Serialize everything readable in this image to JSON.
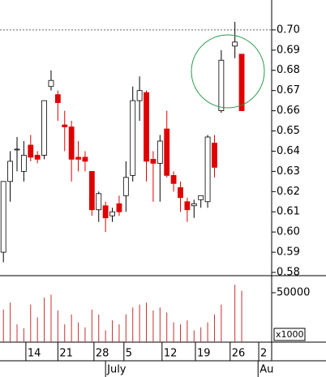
{
  "chart_data": {
    "type": "candlestick",
    "x": [
      0,
      1,
      2,
      3,
      4,
      5,
      6,
      7,
      8,
      9,
      10,
      11,
      12,
      13,
      14,
      15,
      16,
      17,
      18,
      19,
      20,
      21,
      22,
      23,
      24,
      25,
      26,
      27,
      28,
      29,
      30,
      31,
      32,
      34,
      35
    ],
    "open": [
      0.59,
      0.625,
      0.641,
      0.63,
      0.643,
      0.638,
      0.638,
      0.672,
      0.668,
      0.653,
      0.652,
      0.637,
      0.637,
      0.63,
      0.611,
      0.613,
      0.608,
      0.614,
      0.618,
      0.628,
      0.665,
      0.669,
      0.636,
      0.634,
      0.651,
      0.628,
      0.622,
      0.615,
      0.613,
      0.616,
      0.615,
      0.644,
      0.66,
      0.692,
      0.688
    ],
    "high": [
      0.625,
      0.64,
      0.647,
      0.645,
      0.648,
      0.64,
      0.665,
      0.68,
      0.67,
      0.66,
      0.655,
      0.645,
      0.64,
      0.63,
      0.62,
      0.615,
      0.612,
      0.618,
      0.635,
      0.672,
      0.677,
      0.67,
      0.64,
      0.648,
      0.66,
      0.63,
      0.625,
      0.617,
      0.616,
      0.618,
      0.648,
      0.648,
      0.69,
      0.704,
      0.688
    ],
    "low": [
      0.585,
      0.615,
      0.63,
      0.625,
      0.635,
      0.634,
      0.636,
      0.67,
      0.655,
      0.64,
      0.625,
      0.63,
      0.63,
      0.608,
      0.605,
      0.6,
      0.605,
      0.608,
      0.61,
      0.625,
      0.655,
      0.625,
      0.615,
      0.615,
      0.627,
      0.62,
      0.61,
      0.605,
      0.607,
      0.612,
      0.612,
      0.627,
      0.659,
      0.686,
      0.66
    ],
    "close": [
      0.625,
      0.635,
      0.641,
      0.638,
      0.637,
      0.636,
      0.665,
      0.675,
      0.664,
      0.652,
      0.636,
      0.636,
      0.635,
      0.611,
      0.619,
      0.607,
      0.61,
      0.61,
      0.627,
      0.665,
      0.67,
      0.635,
      0.634,
      0.645,
      0.628,
      0.624,
      0.617,
      0.611,
      0.614,
      0.618,
      0.647,
      0.632,
      0.685,
      0.694,
      0.66
    ],
    "up_color": "#ffffff",
    "down_color": "#e00000",
    "xlim": [
      -0.5,
      39.4
    ],
    "xticks": [
      {
        "value": 3.3,
        "label": "14"
      },
      {
        "value": 8.0,
        "label": "21"
      },
      {
        "value": 13.3,
        "label": "28"
      },
      {
        "value": 17.7,
        "label": "5"
      },
      {
        "value": 23.3,
        "label": "12"
      },
      {
        "value": 28.2,
        "label": "19"
      },
      {
        "value": 33.3,
        "label": "26"
      },
      {
        "value": 37.5,
        "label": "2"
      }
    ],
    "month_ticks": [
      {
        "value": 15.0,
        "label": "July"
      },
      {
        "value": 37.4,
        "label": "Au"
      }
    ],
    "ylim": [
      0.5784,
      0.7148
    ],
    "yticks": [
      {
        "value": 0.58,
        "label": "0.58"
      },
      {
        "value": 0.59,
        "label": "0.59"
      },
      {
        "value": 0.6,
        "label": "0.60"
      },
      {
        "value": 0.61,
        "label": "0.61"
      },
      {
        "value": 0.62,
        "label": "0.62"
      },
      {
        "value": 0.63,
        "label": "0.63"
      },
      {
        "value": 0.64,
        "label": "0.64"
      },
      {
        "value": 0.65,
        "label": "0.65"
      },
      {
        "value": 0.66,
        "label": "0.66"
      },
      {
        "value": 0.67,
        "label": "0.67"
      },
      {
        "value": 0.68,
        "label": "0.68"
      },
      {
        "value": 0.69,
        "label": "0.69"
      },
      {
        "value": 0.7,
        "label": "0.70"
      }
    ],
    "hline": 0.7,
    "volume": {
      "values": [
        33000,
        40000,
        18000,
        14000,
        38000,
        25000,
        45000,
        48000,
        32000,
        18000,
        28000,
        20000,
        15000,
        33000,
        28000,
        12000,
        22000,
        18000,
        28000,
        35000,
        38000,
        40000,
        32000,
        35000,
        30000,
        20000,
        18000,
        22000,
        12000,
        15000,
        20000,
        28000,
        38000,
        58000,
        52000
      ],
      "color": "#c83030",
      "ylim": [
        0,
        65600
      ],
      "yticks": [
        50000
      ],
      "unit_label": "x1000"
    }
  }
}
